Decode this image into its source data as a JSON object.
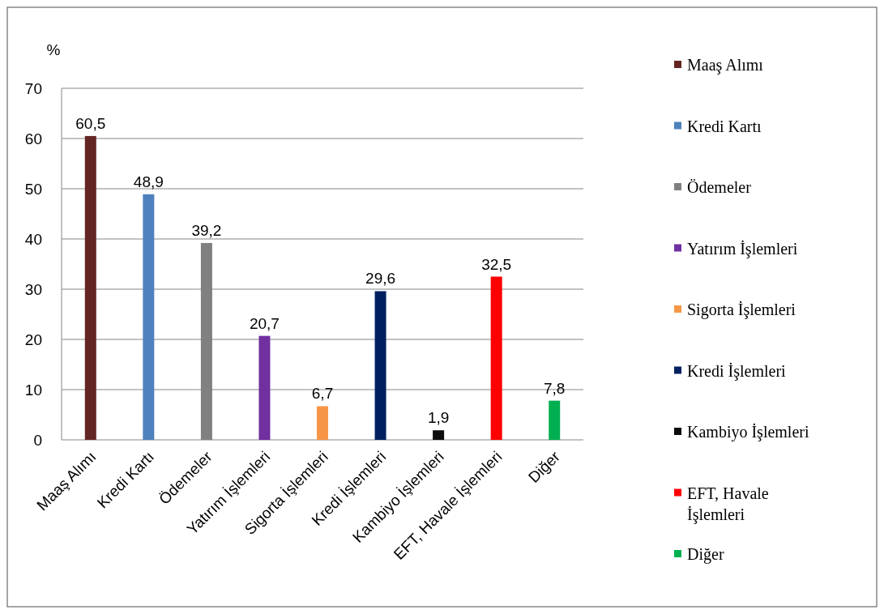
{
  "chart_data": {
    "type": "bar",
    "ylabel": "%",
    "categories": [
      "Maaş Alımı",
      "Kredi Kartı",
      "Ödemeler",
      "Yatırım İşlemleri",
      "Sigorta İşlemleri",
      "Kredi İşlemleri",
      "Kambiyo İşlemleri",
      "EFT, Havale İşlemleri",
      "Diğer"
    ],
    "series": [
      {
        "name": "Maaş Alımı",
        "color": "#632523",
        "values": [
          60.5,
          null,
          null,
          null,
          null,
          null,
          null,
          null,
          null
        ],
        "value_labels": [
          "60,5",
          null,
          null,
          null,
          null,
          null,
          null,
          null,
          null
        ]
      },
      {
        "name": "Kredi Kartı",
        "color": "#4f81bd",
        "values": [
          null,
          48.9,
          null,
          null,
          null,
          null,
          null,
          null,
          null
        ],
        "value_labels": [
          null,
          "48,9",
          null,
          null,
          null,
          null,
          null,
          null,
          null
        ]
      },
      {
        "name": "Ödemeler",
        "color": "#808080",
        "values": [
          null,
          null,
          39.2,
          null,
          null,
          null,
          null,
          null,
          null
        ],
        "value_labels": [
          null,
          null,
          "39,2",
          null,
          null,
          null,
          null,
          null,
          null
        ]
      },
      {
        "name": "Yatırım İşlemleri",
        "color": "#7030a0",
        "values": [
          null,
          null,
          null,
          20.7,
          null,
          null,
          null,
          null,
          null
        ],
        "value_labels": [
          null,
          null,
          null,
          "20,7",
          null,
          null,
          null,
          null,
          null
        ]
      },
      {
        "name": "Sigorta İşlemleri",
        "color": "#f79646",
        "values": [
          null,
          null,
          null,
          null,
          6.7,
          null,
          null,
          null,
          null
        ],
        "value_labels": [
          null,
          null,
          null,
          null,
          "6,7",
          null,
          null,
          null,
          null
        ]
      },
      {
        "name": "Kredi İşlemleri",
        "color": "#002060",
        "values": [
          null,
          null,
          null,
          null,
          null,
          29.6,
          null,
          null,
          null
        ],
        "value_labels": [
          null,
          null,
          null,
          null,
          null,
          "29,6",
          null,
          null,
          null
        ]
      },
      {
        "name": "Kambiyo İşlemleri",
        "color": "#0d0d0d",
        "values": [
          null,
          null,
          null,
          null,
          null,
          null,
          1.9,
          null,
          null
        ],
        "value_labels": [
          null,
          null,
          null,
          null,
          null,
          null,
          "1,9",
          null,
          null
        ]
      },
      {
        "name": "EFT, Havale İşlemleri",
        "color": "#ff0000",
        "values": [
          null,
          null,
          null,
          null,
          null,
          null,
          null,
          32.5,
          null
        ],
        "value_labels": [
          null,
          null,
          null,
          null,
          null,
          null,
          null,
          "32,5",
          null
        ]
      },
      {
        "name": "Diğer",
        "color": "#00b050",
        "values": [
          null,
          null,
          null,
          null,
          null,
          null,
          null,
          null,
          7.8
        ],
        "value_labels": [
          null,
          null,
          null,
          null,
          null,
          null,
          null,
          null,
          "7,8"
        ]
      }
    ],
    "ylim": [
      0,
      70
    ],
    "yticks": [
      0,
      10,
      20,
      30,
      40,
      50,
      60,
      70
    ],
    "grid": "y",
    "legend": "right"
  }
}
